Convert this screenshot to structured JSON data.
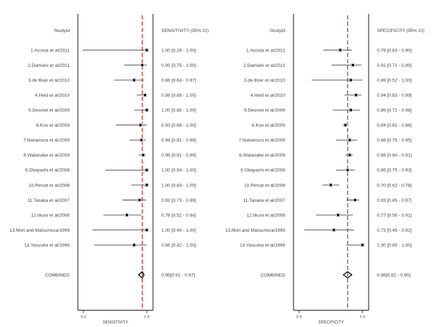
{
  "chart_data": [
    {
      "type": "forest",
      "title": "",
      "column_header_left": "StudyId",
      "column_header_right": "SENSITIVITY (95% CI)",
      "xlabel": "SENSITIVITY",
      "xlim": [
        0.3,
        1.0
      ],
      "xticks": [
        "0.3",
        "1.0"
      ],
      "xtick_values": [
        0.3,
        1.0
      ],
      "reference_line": 0.95,
      "studies": [
        {
          "label": "1.Acosta  et al/2011",
          "est": 1.0,
          "lo": 0.29,
          "hi": 1.0,
          "text": "1.00 [0.29 - 1.00]"
        },
        {
          "label": "2.Damiani  et al/2011",
          "est": 0.95,
          "lo": 0.75,
          "hi": 1.0,
          "text": "0.95 [0.75 - 1.00]"
        },
        {
          "label": "3.de Boer et al/2010",
          "est": 0.86,
          "lo": 0.64,
          "hi": 0.97,
          "text": "0.86 [0.64 - 0.97]"
        },
        {
          "label": "4.Held et al/2010",
          "est": 0.98,
          "lo": 0.89,
          "hi": 1.0,
          "text": "0.98 [0.89 - 1.00]"
        },
        {
          "label": "5.Desmet et al/2009",
          "est": 1.0,
          "lo": 0.86,
          "hi": 1.0,
          "text": "1.00 [0.86 - 1.00]"
        },
        {
          "label": "6.Koo et al/2009",
          "est": 0.93,
          "lo": 0.66,
          "hi": 1.0,
          "text": "0.93 [0.66 - 1.00]"
        },
        {
          "label": "7.Nakamura et al/2009",
          "est": 0.94,
          "lo": 0.81,
          "hi": 0.99,
          "text": "0.94 [0.81 - 0.99]"
        },
        {
          "label": "8.Watanabe et al/2009",
          "est": 0.96,
          "lo": 0.91,
          "hi": 0.99,
          "text": "0.96 [0.91 - 0.99]"
        },
        {
          "label": "9.Obayashi et al/2008",
          "est": 1.0,
          "lo": 0.54,
          "hi": 1.0,
          "text": "1.00 [0.54 - 1.00]"
        },
        {
          "label": "10.Persat et al/2008",
          "est": 1.0,
          "lo": 0.83,
          "hi": 1.0,
          "text": "1.00 [0.83 - 1.00]"
        },
        {
          "label": "11.Tasaka et al/2007",
          "est": 0.92,
          "lo": 0.73,
          "hi": 0.99,
          "text": "0.92 [0.73 - 0.99]"
        },
        {
          "label": "12.Iikuni et al/2006",
          "est": 0.78,
          "lo": 0.52,
          "hi": 0.94,
          "text": "0.78 [0.52 - 0.94]"
        },
        {
          "label": "13.Mori and Matsumura/1999",
          "est": 1.0,
          "lo": 0.4,
          "hi": 1.0,
          "text": "1.00 [0.40 - 1.00]"
        },
        {
          "label": "14.Yasuoka et al/1996",
          "est": 0.86,
          "lo": 0.42,
          "hi": 1.0,
          "text": "0.86 [0.42 - 1.00]"
        }
      ],
      "combined": {
        "label": "COMBINED",
        "est": 0.95,
        "lo": 0.91,
        "hi": 0.97,
        "text": "0.95[0.91 - 0.97]"
      },
      "colors": {
        "reference": "#c0392b",
        "marker": "#000000",
        "line": "#555555",
        "frame": "#555555"
      }
    },
    {
      "type": "forest",
      "title": "",
      "column_header_left": "StudyId",
      "column_header_right": "SPECIFICITY (95% CI)",
      "xlabel": "SPECIFICITY",
      "xlim": [
        0.4,
        1.0
      ],
      "xticks": [
        "0.4",
        "1.0"
      ],
      "xtick_values": [
        0.4,
        1.0
      ],
      "reference_line": 0.86,
      "studies": [
        {
          "label": "1.Acosta  et al/2011",
          "est": 0.79,
          "lo": 0.63,
          "hi": 0.9,
          "text": "0.79 [0.63 - 0.90]"
        },
        {
          "label": "2.Damiani  et al/2011",
          "est": 0.91,
          "lo": 0.71,
          "hi": 0.99,
          "text": "0.91 [0.71 - 0.99]"
        },
        {
          "label": "3.de Boer et al/2010",
          "est": 0.89,
          "lo": 0.52,
          "hi": 1.0,
          "text": "0.89 [0.52 - 1.00]"
        },
        {
          "label": "4.Held et al/2010",
          "est": 0.94,
          "lo": 0.83,
          "hi": 0.99,
          "text": "0.94 [0.83 - 0.99]"
        },
        {
          "label": "5.Desmet et al/2009",
          "est": 0.89,
          "lo": 0.72,
          "hi": 0.98,
          "text": "0.89 [0.72 - 0.98]"
        },
        {
          "label": "6.Koo et al/2009",
          "est": 0.84,
          "lo": 0.81,
          "hi": 0.86,
          "text": "0.84 [0.81 - 0.86]"
        },
        {
          "label": "7.Nakamura et al/2009",
          "est": 0.88,
          "lo": 0.75,
          "hi": 0.95,
          "text": "0.88 [0.75 - 0.95]"
        },
        {
          "label": "8.Watanabe et al/2009",
          "est": 0.88,
          "lo": 0.84,
          "hi": 0.91,
          "text": "0.88 [0.84 - 0.91]"
        },
        {
          "label": "9.Obayashi et al/2008",
          "est": 0.86,
          "lo": 0.75,
          "hi": 0.93,
          "text": "0.86 [0.75 - 0.93]"
        },
        {
          "label": "10.Persat et al/2008",
          "est": 0.7,
          "lo": 0.62,
          "hi": 0.78,
          "text": "0.70 [0.62 - 0.78]"
        },
        {
          "label": "11.Tasaka et al/2007",
          "est": 0.93,
          "lo": 0.85,
          "hi": 0.97,
          "text": "0.93 [0.85 - 0.97]"
        },
        {
          "label": "12.Iikuni et al/2006",
          "est": 0.77,
          "lo": 0.56,
          "hi": 0.91,
          "text": "0.77 [0.56 - 0.91]"
        },
        {
          "label": "13.Mori and Matsumura/1999",
          "est": 0.73,
          "lo": 0.45,
          "hi": 0.92,
          "text": "0.73 [0.45 - 0.92]"
        },
        {
          "label": "14.Yasuoka et al/1996",
          "est": 1.0,
          "lo": 0.85,
          "hi": 1.0,
          "text": "1.00 [0.85 - 1.00]"
        }
      ],
      "combined": {
        "label": "COMBINED",
        "est": 0.86,
        "lo": 0.82,
        "hi": 0.9,
        "text": "0.86[0.82 - 0.90]"
      },
      "colors": {
        "reference": "#c0392b",
        "marker": "#000000",
        "line": "#555555",
        "frame": "#555555"
      }
    }
  ]
}
